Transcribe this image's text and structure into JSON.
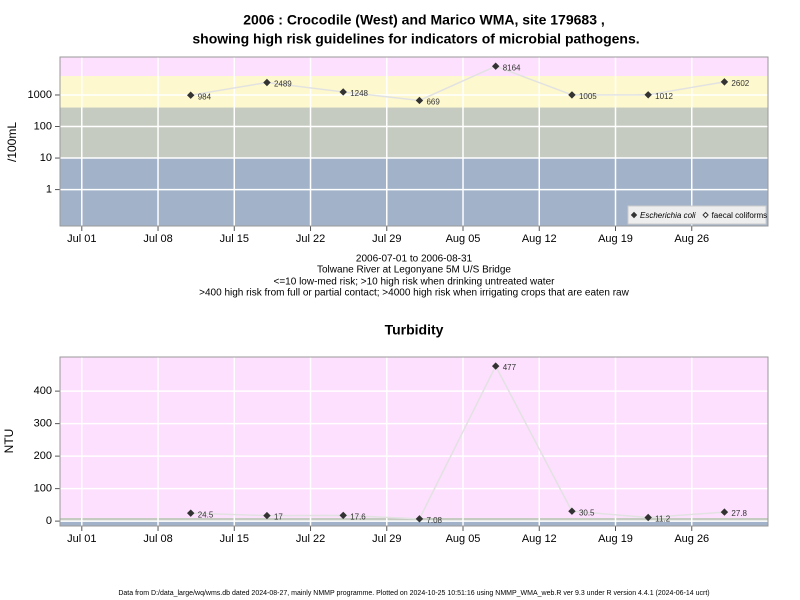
{
  "chart_data": [
    {
      "type": "line",
      "title": "2006 : Crocodile (West) and Marico WMA, site 179683 ,",
      "title2": "showing high risk guidelines for indicators of microbial pathogens.",
      "y_label": "/100mL",
      "log_y": true,
      "x": [
        "Jul 11",
        "Jul 18",
        "Jul 25",
        "Aug 01",
        "Aug 08",
        "Aug 15",
        "Aug 22",
        "Aug 29"
      ],
      "xlim": [
        "Jun 29",
        "Sep 02"
      ],
      "xticks": [
        "Jul 01",
        "Jul 08",
        "Jul 15",
        "Jul 22",
        "Jul 29",
        "Aug 05",
        "Aug 12",
        "Aug 19",
        "Aug 26"
      ],
      "ylim": [
        0.07,
        16000
      ],
      "yticks": [
        1,
        10,
        100,
        1000
      ],
      "grid": true,
      "bands": [
        {
          "from": 0.07,
          "to": 10,
          "color": "#a2b2c9"
        },
        {
          "from": 10,
          "to": 400,
          "color": "#c5cbc1"
        },
        {
          "from": 400,
          "to": 4000,
          "color": "#fdf8cd"
        },
        {
          "from": 4000,
          "to": 16000,
          "color": "#fde0fd"
        }
      ],
      "line_color": "#e2e2e2",
      "legend": "lower right",
      "series": [
        {
          "name": "Escherichia coli",
          "color": "#333333",
          "marker": "filled",
          "values": [
            984,
            2489,
            1248,
            669,
            8164,
            1005,
            1012,
            2602
          ]
        },
        {
          "name": "faecal coliforms",
          "color": "#333333",
          "marker": "open",
          "values": [
            null,
            null,
            null,
            null,
            null,
            null,
            null,
            null
          ]
        }
      ],
      "notes": [
        "2006-07-01 to 2006-08-31",
        "Tolwane River at Legonyane 5M U/S Bridge",
        "<=10 low-med risk; >10 high risk when drinking untreated water",
        ">400 high risk from full or partial contact; >4000 high risk when irrigating crops that are eaten raw"
      ]
    },
    {
      "type": "line",
      "title": "Turbidity",
      "y_label": "NTU",
      "log_y": false,
      "x": [
        "Jul 11",
        "Jul 18",
        "Jul 25",
        "Aug 01",
        "Aug 08",
        "Aug 15",
        "Aug 22",
        "Aug 29"
      ],
      "xlim": [
        "Jun 29",
        "Sep 02"
      ],
      "xticks": [
        "Jul 01",
        "Jul 08",
        "Jul 15",
        "Jul 22",
        "Jul 29",
        "Aug 05",
        "Aug 12",
        "Aug 19",
        "Aug 26"
      ],
      "ylim": [
        -15,
        505
      ],
      "yticks": [
        0,
        100,
        200,
        300,
        400
      ],
      "grid": true,
      "bands": [
        {
          "from": -15,
          "to": 1,
          "color": "#a2b2c9"
        },
        {
          "from": 1,
          "to": 10,
          "color": "#c5cbc1"
        },
        {
          "from": 10,
          "to": 505,
          "color": "#fde0fd"
        }
      ],
      "line_color": "#e2e2e2",
      "series": [
        {
          "name": "Turbidity",
          "color": "#333333",
          "marker": "filled",
          "values": [
            24.5,
            17,
            17.6,
            7.08,
            477,
            30.5,
            11.2,
            27.8
          ]
        }
      ]
    }
  ],
  "footer": "Data from D:/data_large/wq/wms.db dated 2024-08-27, mainly NMMP programme. Plotted on 2024-10-25 10:51:16 using NMMP_WMA_web.R ver 9.3 under R version 4.4.1 (2024-06-14 ucrt)"
}
